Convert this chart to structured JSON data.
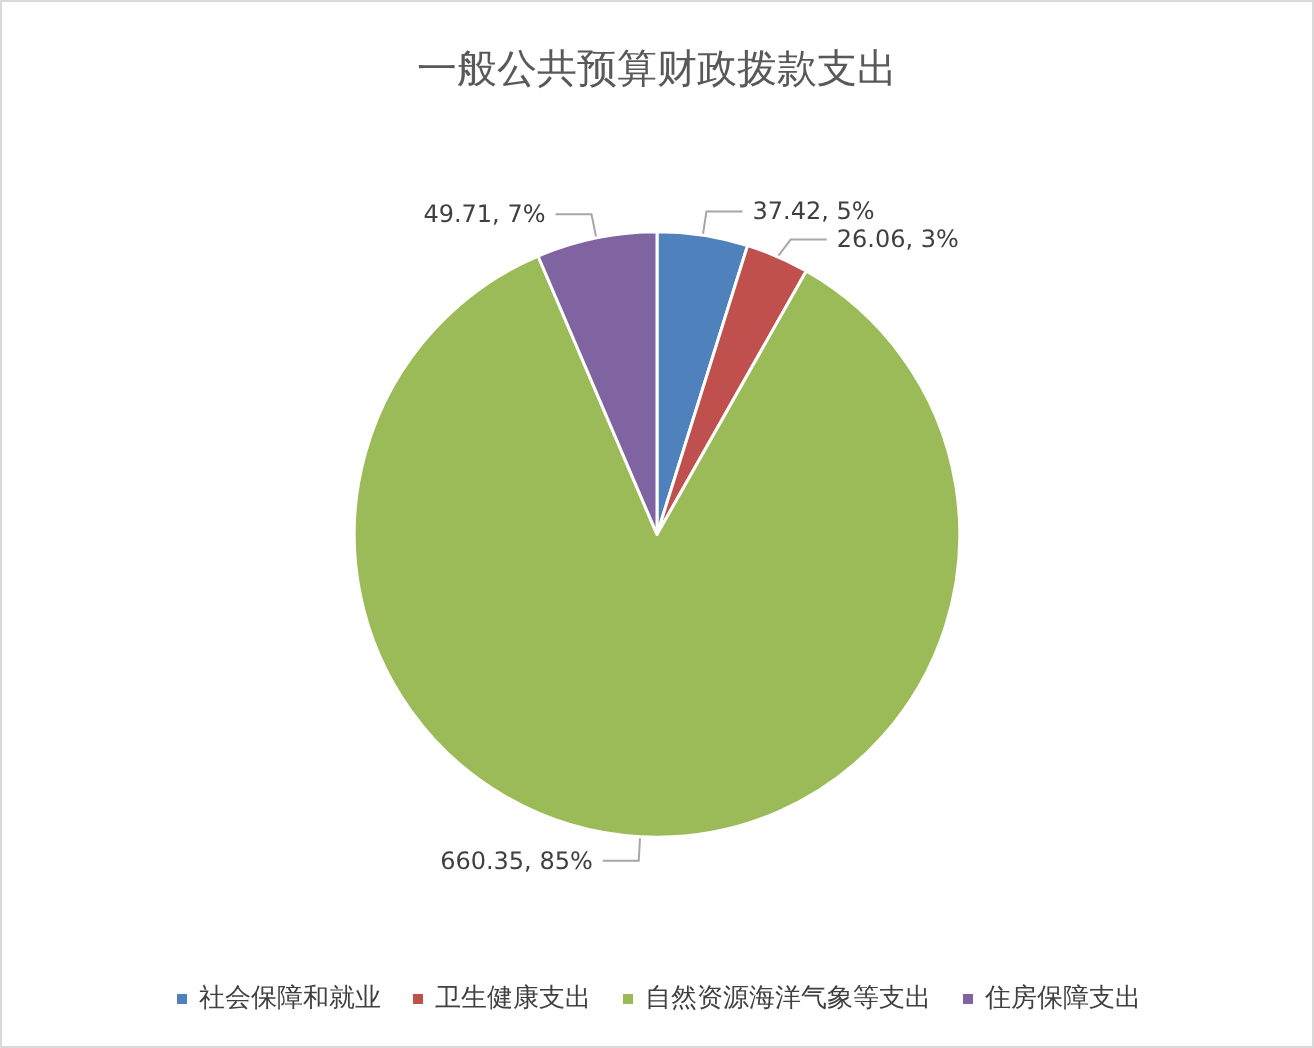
{
  "chart_data": {
    "type": "pie",
    "title": "一般公共预算财政拨款支出",
    "categories": [
      "社会保障和就业",
      "卫生健康支出",
      "自然资源海洋气象等支出",
      "住房保障支出"
    ],
    "values": [
      37.42,
      26.06,
      660.35,
      49.71
    ],
    "colors": [
      "#4f81bd",
      "#c0504d",
      "#9bbb59",
      "#8064a2"
    ],
    "value_labels": [
      "37.42, 5%",
      "26.06, 3%",
      "660.35, 85%",
      "49.71, 7%"
    ],
    "legend": "bottom"
  }
}
